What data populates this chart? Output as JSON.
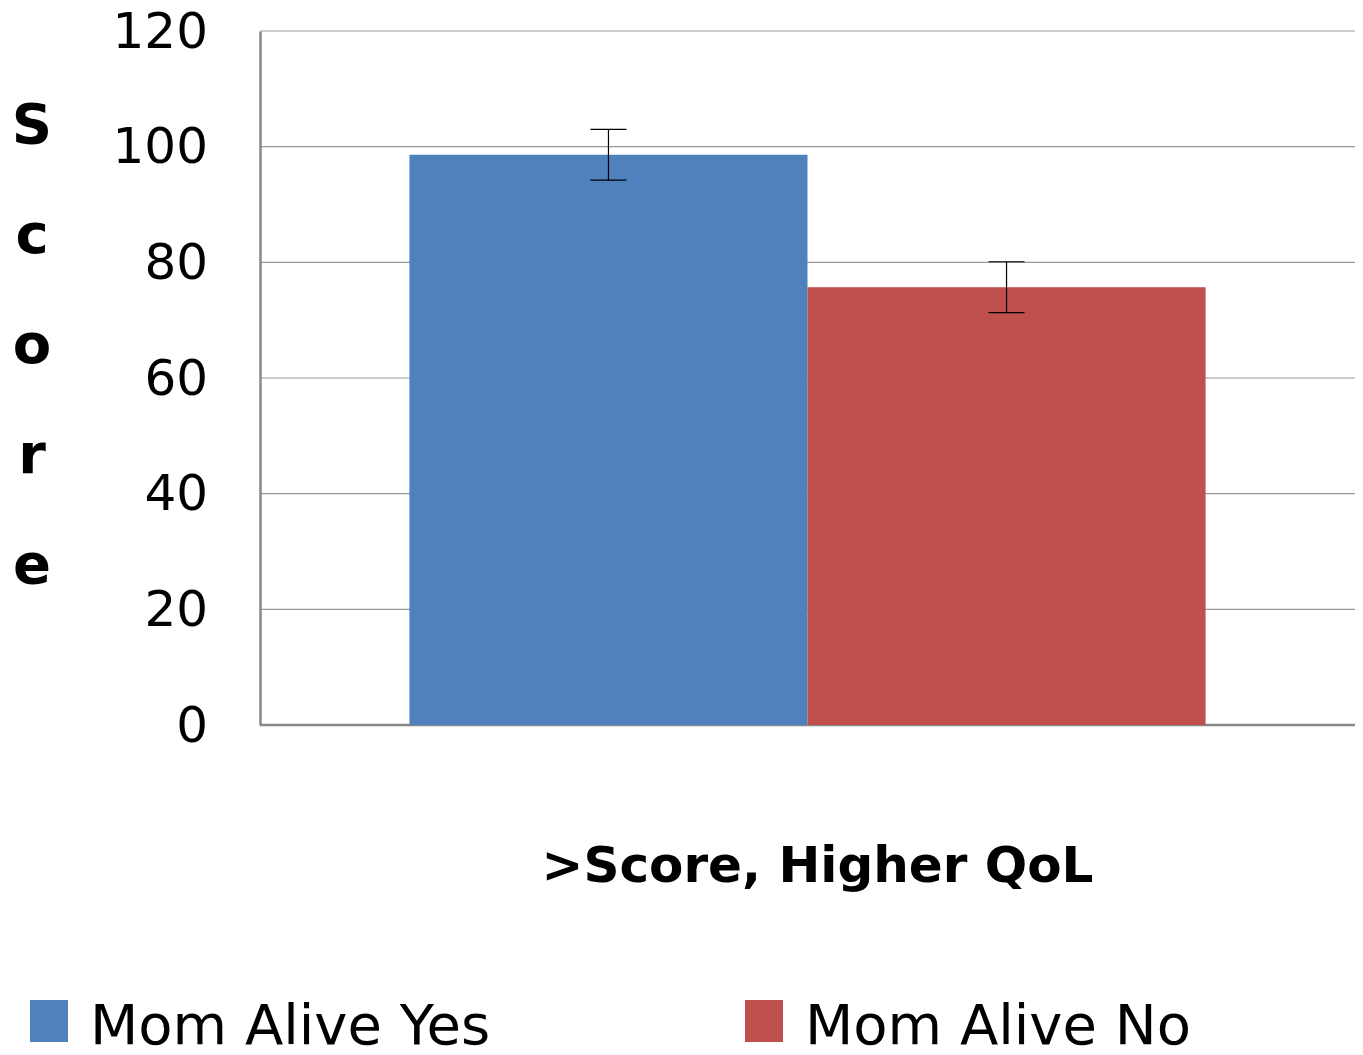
{
  "chart_data": {
    "type": "bar",
    "xlabel": ">Score, Higher QoL",
    "ylabel": "Score",
    "categories": [
      null
    ],
    "series": [
      {
        "name": "Mom Alive Yes",
        "color": "#4f81bd",
        "values": [
          98.6
        ],
        "errors": [
          4.4
        ]
      },
      {
        "name": "Mom Alive No",
        "color": "#c0504d",
        "values": [
          75.7
        ],
        "errors": [
          4.4
        ]
      }
    ],
    "ylim": [
      0,
      120
    ],
    "yticks": [
      0,
      20,
      40,
      60,
      80,
      100,
      120
    ],
    "grid": "y",
    "legend": "bottom"
  }
}
